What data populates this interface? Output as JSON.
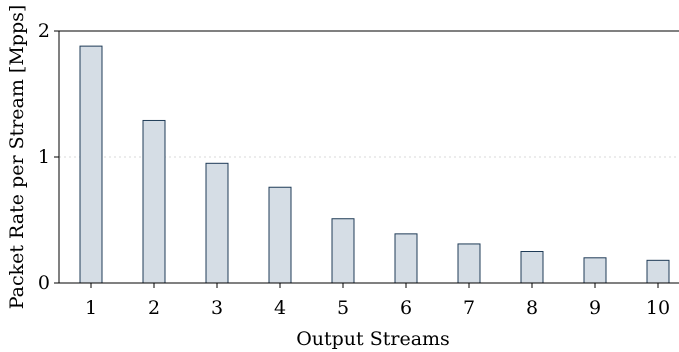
{
  "chart_data": {
    "type": "bar",
    "categories": [
      "1",
      "2",
      "3",
      "4",
      "5",
      "6",
      "7",
      "8",
      "9",
      "10"
    ],
    "values": [
      1.88,
      1.29,
      0.95,
      0.76,
      0.51,
      0.39,
      0.31,
      0.25,
      0.2,
      0.18
    ],
    "title": "",
    "xlabel": "Output Streams",
    "ylabel": "Packet Rate per Stream [Mpps]",
    "ylim": [
      0,
      2
    ],
    "yticks": [
      "0",
      "1",
      "2"
    ],
    "grid": "horizontal dotted at y=1",
    "bar_fill": "#d5dde5",
    "bar_stroke": "#1f3b57"
  }
}
